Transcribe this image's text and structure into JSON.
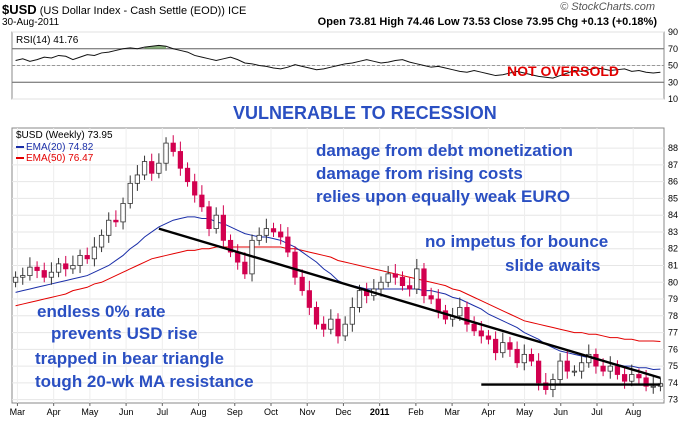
{
  "header": {
    "ticker": "$USD",
    "name": "(US Dollar Index - Cash Settle (EOD))",
    "exchange": "ICE",
    "date": "30-Aug-2011",
    "ohlc": "Open 73.81  High 74.46  Low 73.53  Close 73.95  Chg +0.13 (+0.18%)",
    "brand": "© StockCharts.com"
  },
  "colors": {
    "up_body": "#ffffff",
    "down_body": "#d2004f",
    "ema20": "#1a2ea8",
    "ema50": "#e30000",
    "trend": "#000000",
    "annotation_blue": "#2a4fc2",
    "annotation_red": "#e00000"
  },
  "annotations": {
    "not_oversold": "NOT OVERSOLD",
    "vulnerable": "VULNERABLE TO RECESSION",
    "block1": [
      "damage from debt monetization",
      "damage from rising costs",
      "relies upon equally weak EURO"
    ],
    "block2": [
      "no impetus for bounce",
      "slide awaits"
    ],
    "block3": [
      "endless 0% rate",
      "prevents USD rise",
      "trapped in bear triangle",
      "tough 20-wk MA resistance"
    ]
  },
  "chart_data": [
    {
      "type": "line",
      "title": "RSI(14) 41.76",
      "ylim": [
        10,
        90
      ],
      "y_ticks": [
        10,
        30,
        50,
        70,
        90
      ],
      "y_tick_labels": [
        "10",
        "30",
        "50",
        "70",
        "90"
      ],
      "reference_lines": [
        30,
        50,
        70
      ],
      "values": [
        56,
        58,
        55,
        57,
        60,
        59,
        62,
        61,
        57,
        60,
        63,
        62,
        65,
        66,
        68,
        70,
        71,
        70,
        72,
        73,
        74,
        73,
        70,
        68,
        66,
        62,
        60,
        58,
        56,
        58,
        60,
        57,
        53,
        52,
        50,
        49,
        47,
        46,
        48,
        51,
        49,
        47,
        45,
        46,
        48,
        50,
        52,
        53,
        55,
        57,
        55,
        53,
        54,
        56,
        57,
        54,
        52,
        50,
        48,
        49,
        47,
        45,
        43,
        42,
        44,
        42,
        40,
        38,
        39,
        41,
        43,
        41,
        39,
        37,
        36,
        35,
        38,
        41,
        44,
        43,
        45,
        47,
        46,
        44,
        45,
        46,
        43,
        44,
        42,
        41,
        42
      ]
    },
    {
      "type": "candlestick",
      "title": "$USD (Weekly) 73.95",
      "ylim": [
        72.8,
        89.2
      ],
      "y_ticks": [
        73,
        74,
        75,
        76,
        77,
        78,
        79,
        80,
        81,
        82,
        83,
        84,
        85,
        86,
        87,
        88
      ],
      "x_ticks": [
        "Mar",
        "Apr",
        "May",
        "Jun",
        "Jul",
        "Aug",
        "Sep",
        "Oct",
        "Nov",
        "Dec",
        "2011",
        "Feb",
        "Mar",
        "Apr",
        "May",
        "Jun",
        "Jul",
        "Aug"
      ],
      "grid": true,
      "series": [
        {
          "name": "EMA(20) 74.82"
        },
        {
          "name": "EMA(50) 76.47"
        }
      ],
      "opens": [
        80.0,
        80.3,
        80.4,
        80.9,
        80.7,
        80.3,
        80.6,
        81.1,
        80.8,
        81.0,
        81.6,
        81.4,
        82.1,
        82.8,
        83.7,
        83.6,
        84.7,
        85.9,
        86.4,
        87.2,
        86.5,
        87.1,
        88.3,
        87.8,
        86.8,
        86.0,
        85.2,
        84.5,
        83.2,
        84.0,
        82.5,
        81.8,
        81.2,
        80.5,
        82.5,
        82.8,
        83.2,
        83.0,
        82.7,
        81.8,
        80.3,
        79.5,
        78.5,
        77.5,
        77.2,
        77.8,
        76.8,
        77.5,
        78.5,
        79.5,
        79.2,
        79.6,
        80.0,
        80.5,
        80.3,
        79.8,
        79.6,
        80.8,
        79.2,
        79.0,
        78.3,
        77.8,
        78.0,
        78.5,
        77.5,
        77.1,
        76.8,
        76.6,
        75.8,
        76.4,
        76.0,
        75.2,
        75.7,
        75.3,
        74.0,
        73.6,
        74.2,
        75.3,
        74.7,
        74.7,
        75.2,
        75.7,
        75.0,
        74.7,
        75.0,
        74.5,
        74.1,
        74.5,
        74.3,
        73.8,
        73.8
      ],
      "closes": [
        80.3,
        80.4,
        80.9,
        80.7,
        80.3,
        80.6,
        81.1,
        80.8,
        81.0,
        81.6,
        81.4,
        82.1,
        82.8,
        83.7,
        83.6,
        84.7,
        85.9,
        86.4,
        87.2,
        86.5,
        87.1,
        88.3,
        87.8,
        86.8,
        86.0,
        85.2,
        84.5,
        83.2,
        84.0,
        82.5,
        81.8,
        81.2,
        80.5,
        82.5,
        82.8,
        83.2,
        83.0,
        82.7,
        81.8,
        80.3,
        79.5,
        78.5,
        77.5,
        77.2,
        77.8,
        76.8,
        77.5,
        78.5,
        79.5,
        79.2,
        79.6,
        80.0,
        80.5,
        80.3,
        79.8,
        79.6,
        80.8,
        79.2,
        79.0,
        78.3,
        77.8,
        78.0,
        78.5,
        77.5,
        77.1,
        76.8,
        76.6,
        75.8,
        76.4,
        76.0,
        75.2,
        75.7,
        75.3,
        74.0,
        73.6,
        74.2,
        75.3,
        74.7,
        74.7,
        75.2,
        75.7,
        75.0,
        74.7,
        75.0,
        74.5,
        74.1,
        74.5,
        74.3,
        73.8,
        73.8,
        73.95
      ],
      "ema20": [
        79.4,
        79.5,
        79.6,
        79.7,
        79.8,
        79.9,
        80.0,
        80.1,
        80.2,
        80.3,
        80.4,
        80.6,
        80.8,
        81.0,
        81.3,
        81.6,
        82.0,
        82.3,
        82.7,
        83.0,
        83.3,
        83.5,
        83.7,
        83.8,
        83.9,
        83.9,
        83.8,
        83.8,
        83.6,
        83.5,
        83.3,
        83.1,
        82.9,
        82.8,
        82.7,
        82.7,
        82.6,
        82.5,
        82.3,
        82.1,
        81.8,
        81.5,
        81.2,
        80.8,
        80.5,
        80.1,
        79.9,
        79.8,
        79.7,
        79.6,
        79.6,
        79.6,
        79.6,
        79.6,
        79.6,
        79.6,
        79.6,
        79.5,
        79.5,
        79.4,
        79.3,
        79.1,
        79.0,
        78.8,
        78.6,
        78.4,
        78.1,
        77.9,
        77.7,
        77.5,
        77.3,
        77.0,
        76.8,
        76.6,
        76.3,
        76.1,
        75.9,
        75.8,
        75.7,
        75.6,
        75.5,
        75.4,
        75.3,
        75.2,
        75.1,
        75.0,
        75.0,
        74.9,
        74.9,
        74.8,
        74.82
      ],
      "ema50": [
        78.6,
        78.7,
        78.8,
        78.9,
        79.0,
        79.1,
        79.2,
        79.3,
        79.5,
        79.6,
        79.7,
        79.9,
        80.0,
        80.2,
        80.4,
        80.6,
        80.8,
        81.0,
        81.2,
        81.4,
        81.5,
        81.6,
        81.7,
        81.8,
        81.9,
        81.9,
        82.0,
        82.0,
        82.1,
        82.1,
        82.1,
        82.1,
        82.1,
        82.1,
        82.1,
        82.1,
        82.1,
        82.1,
        82.0,
        82.0,
        81.9,
        81.8,
        81.7,
        81.6,
        81.5,
        81.3,
        81.2,
        81.1,
        81.0,
        80.9,
        80.8,
        80.7,
        80.6,
        80.5,
        80.4,
        80.3,
        80.2,
        80.1,
        80.0,
        79.9,
        79.8,
        79.6,
        79.5,
        79.3,
        79.1,
        78.9,
        78.7,
        78.5,
        78.3,
        78.1,
        77.9,
        77.7,
        77.6,
        77.5,
        77.4,
        77.3,
        77.2,
        77.1,
        77.0,
        77.0,
        76.9,
        76.9,
        76.8,
        76.7,
        76.7,
        76.6,
        76.6,
        76.5,
        76.5,
        76.5,
        76.47
      ],
      "trendlines": [
        {
          "from": [
            20,
            83.2
          ],
          "to": [
            90,
            74.3
          ]
        },
        {
          "from": [
            65,
            73.9
          ],
          "to": [
            90,
            73.9
          ]
        }
      ]
    }
  ]
}
